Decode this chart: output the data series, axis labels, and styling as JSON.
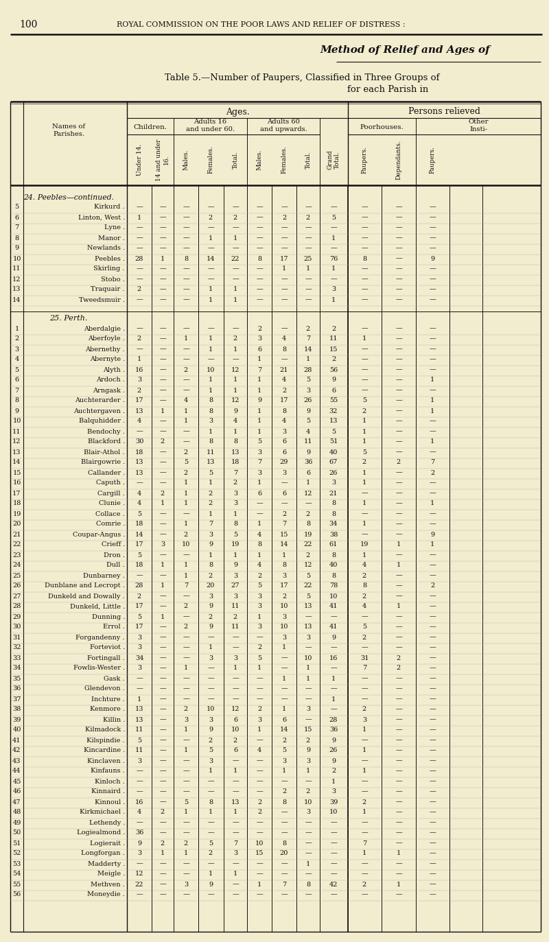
{
  "page_num": "100",
  "header_line": "ROYAL COMMISSION ON THE POOR LAWS AND RELIEF OF DISTRESS :",
  "right_header": "Method of Relief and Ages of",
  "table_title_line1": "Table 5.—Number of Paupers, Classified in Three Groups of",
  "table_title_line2": "for each Parish in",
  "section_peebles": "24. Peebles—continued.",
  "section_perth": "25. Perth.",
  "bg_color": "#f2edcf",
  "text_color": "#1a1a1a",
  "rows_peebles": [
    [
      "5",
      "Kirkurd",
      "—",
      "—",
      "—",
      "—",
      "—",
      "—",
      "—",
      "—",
      "—",
      "—",
      "—",
      "—"
    ],
    [
      "6",
      "Linton, West",
      "1",
      "—",
      "—",
      "2",
      "2",
      "—",
      "2",
      "2",
      "5",
      "—",
      "—",
      "—"
    ],
    [
      "7",
      "Lyne",
      "—",
      "—",
      "—",
      "—",
      "—",
      "—",
      "—",
      "—",
      "—",
      "—",
      "—",
      "—"
    ],
    [
      "8",
      "Manor",
      "—",
      "—",
      "—",
      "1",
      "1",
      "—",
      "—",
      "—",
      "1",
      "—",
      "—",
      "—"
    ],
    [
      "9",
      "Newlands",
      "—",
      "—",
      "—",
      "—",
      "—",
      "—",
      "—",
      "—",
      "—",
      "—",
      "—",
      "—"
    ],
    [
      "10",
      "Peebles",
      "28",
      "1",
      "8",
      "14",
      "22",
      "8",
      "17",
      "25",
      "76",
      "8",
      "—",
      "9"
    ],
    [
      "11",
      "Skirling",
      "—",
      "—",
      "—",
      "—",
      "—",
      "—",
      "1",
      "1",
      "1",
      "—",
      "—",
      "—"
    ],
    [
      "12",
      "Stobo",
      "—",
      "—",
      "—",
      "—",
      "—",
      "—",
      "—",
      "—",
      "—",
      "—",
      "—",
      "—"
    ],
    [
      "13",
      "Traquair",
      "2",
      "—",
      "—",
      "1",
      "1",
      "—",
      "—",
      "—",
      "3",
      "—",
      "—",
      "—"
    ],
    [
      "14",
      "Tweedsmuir",
      "—",
      "—",
      "—",
      "1",
      "1",
      "—",
      "—",
      "—",
      "1",
      "—",
      "—",
      "—"
    ]
  ],
  "rows_perth": [
    [
      "1",
      "Aberdalgie",
      "—",
      "—",
      "—",
      "—",
      "—",
      "2",
      "—",
      "2",
      "2",
      "—",
      "—",
      "—"
    ],
    [
      "2",
      "Aberfoyle",
      "2",
      "—",
      "1",
      "1",
      "2",
      "3",
      "4",
      "7",
      "11",
      "1",
      "—",
      "—"
    ],
    [
      "3",
      "Abernethy",
      "—",
      "—",
      "—",
      "1",
      "1",
      "6",
      "8",
      "14",
      "15",
      "—",
      "—",
      "—"
    ],
    [
      "4",
      "Abernyte",
      "1",
      "—",
      "—",
      "—",
      "—",
      "1",
      "—",
      "1",
      "2",
      "—",
      "—",
      "—"
    ],
    [
      "5",
      "Alyth",
      "16",
      "—",
      "2",
      "10",
      "12",
      "7",
      "21",
      "28",
      "56",
      "—",
      "—",
      "—"
    ],
    [
      "6",
      "Ardoch",
      "3",
      "—",
      "—",
      "1",
      "1",
      "1",
      "4",
      "5",
      "9",
      "—",
      "—",
      "1"
    ],
    [
      "7",
      "Arngask",
      "2",
      "—",
      "—",
      "1",
      "1",
      "1",
      "2",
      "3",
      "6",
      "—",
      "—",
      "—"
    ],
    [
      "8",
      "Auchterarder",
      "17",
      "—",
      "4",
      "8",
      "12",
      "9",
      "17",
      "26",
      "55",
      "5",
      "—",
      "1"
    ],
    [
      "9",
      "Auchtergaven",
      "13",
      "1",
      "1",
      "8",
      "9",
      "1",
      "8",
      "9",
      "32",
      "2",
      "—",
      "1"
    ],
    [
      "10",
      "Balquhidder",
      "4",
      "—",
      "1",
      "3",
      "4",
      "1",
      "4",
      "5",
      "13",
      "1",
      "—",
      "—"
    ],
    [
      "11",
      "Bendochy",
      "—",
      "—",
      "—",
      "1",
      "1",
      "1",
      "3",
      "4",
      "5",
      "1",
      "—",
      "—"
    ],
    [
      "12",
      "Blackford",
      "30",
      "2",
      "—",
      "8",
      "8",
      "5",
      "6",
      "11",
      "51",
      "1",
      "—",
      "1"
    ],
    [
      "13",
      "Blair-Athol",
      "18",
      "—",
      "2",
      "11",
      "13",
      "3",
      "6",
      "9",
      "40",
      "5",
      "—",
      "—"
    ],
    [
      "14",
      "Blairgowrie",
      "13",
      "—",
      "5",
      "13",
      "18",
      "7",
      "29",
      "36",
      "67",
      "2",
      "2",
      "7"
    ],
    [
      "15",
      "Callander",
      "13",
      "—",
      "2",
      "5",
      "7",
      "3",
      "3",
      "6",
      "26",
      "1",
      "—",
      "2"
    ],
    [
      "16",
      "Caputh",
      "—",
      "—",
      "1",
      "1",
      "2",
      "1",
      "—",
      "1",
      "3",
      "1",
      "—",
      "—"
    ],
    [
      "17",
      "Cargill",
      "4",
      "2",
      "1",
      "2",
      "3",
      "6",
      "6",
      "12",
      "21",
      "—",
      "—",
      "—"
    ],
    [
      "18",
      "Clunie",
      "4",
      "1",
      "1",
      "2",
      "3",
      "—",
      "—",
      "—",
      "8",
      "1",
      "—",
      "1"
    ],
    [
      "19",
      "Collace",
      "5",
      "—",
      "—",
      "1",
      "1",
      "—",
      "2",
      "2",
      "8",
      "—",
      "—",
      "—"
    ],
    [
      "20",
      "Comrie",
      "18",
      "—",
      "1",
      "7",
      "8",
      "1",
      "7",
      "8",
      "34",
      "1",
      "—",
      "—"
    ],
    [
      "21",
      "Coupar-Angus",
      "14",
      "—",
      "2",
      "3",
      "5",
      "4",
      "15",
      "19",
      "38",
      "—",
      "—",
      "9"
    ],
    [
      "22",
      "Crieff",
      "17",
      "3",
      "10",
      "9",
      "19",
      "8",
      "14",
      "22",
      "61",
      "19",
      "1",
      "1"
    ],
    [
      "23",
      "Dron",
      "5",
      "—",
      "—",
      "1",
      "1",
      "1",
      "1",
      "2",
      "8",
      "1",
      "—",
      "—"
    ],
    [
      "24",
      "Dull",
      "18",
      "1",
      "1",
      "8",
      "9",
      "4",
      "8",
      "12",
      "40",
      "4",
      "1",
      "—"
    ],
    [
      "25",
      "Dunbarney",
      "—",
      "—",
      "1",
      "2",
      "3",
      "2",
      "3",
      "5",
      "8",
      "2",
      "—",
      "—"
    ],
    [
      "26",
      "Dunblane and Lecropt",
      "28",
      "1",
      "7",
      "20",
      "27",
      "5",
      "17",
      "22",
      "78",
      "8",
      "—",
      "2"
    ],
    [
      "27",
      "Dunkeld and Dowally",
      "2",
      "—",
      "—",
      "3",
      "3",
      "3",
      "2",
      "5",
      "10",
      "2",
      "—",
      "—"
    ],
    [
      "28",
      "Dunkeld, Little",
      "17",
      "—",
      "2",
      "9",
      "11",
      "3",
      "10",
      "13",
      "41",
      "4",
      "1",
      "—"
    ],
    [
      "29",
      "Dunning",
      "5",
      "1",
      "—",
      "2",
      "2",
      "1",
      "3",
      "—",
      "—",
      "—",
      "—",
      "—"
    ],
    [
      "30",
      "Errol",
      "17",
      "—",
      "2",
      "9",
      "11",
      "3",
      "10",
      "13",
      "41",
      "5",
      "—",
      "—"
    ],
    [
      "31",
      "Forgandenny",
      "3",
      "—",
      "—",
      "—",
      "—",
      "—",
      "3",
      "3",
      "9",
      "2",
      "—",
      "—"
    ],
    [
      "32",
      "Forteviot",
      "3",
      "—",
      "—",
      "1",
      "—",
      "2",
      "1",
      "—",
      "—",
      "—",
      "—",
      "—"
    ],
    [
      "33",
      "Fortingall",
      "34",
      "—",
      "—",
      "3",
      "3",
      "5",
      "—",
      "10",
      "16",
      "31",
      "2",
      "—"
    ],
    [
      "34",
      "Fowlis-Wester",
      "3",
      "—",
      "1",
      "—",
      "1",
      "1",
      "—",
      "1",
      "—",
      "7",
      "2",
      "—"
    ],
    [
      "35",
      "Gask",
      "—",
      "—",
      "—",
      "—",
      "—",
      "—",
      "1",
      "1",
      "1",
      "—",
      "—",
      "—"
    ],
    [
      "36",
      "Glendevon",
      "—",
      "—",
      "—",
      "—",
      "—",
      "—",
      "—",
      "—",
      "—",
      "—",
      "—",
      "—"
    ],
    [
      "37",
      "Inchture",
      "1",
      "—",
      "—",
      "—",
      "—",
      "—",
      "—",
      "—",
      "1",
      "—",
      "—",
      "—"
    ],
    [
      "38",
      "Kenmore",
      "13",
      "—",
      "2",
      "10",
      "12",
      "2",
      "1",
      "3",
      "—",
      "2",
      "—",
      "—"
    ],
    [
      "39",
      "Killin",
      "13",
      "—",
      "3",
      "3",
      "6",
      "3",
      "6",
      "—",
      "28",
      "3",
      "—",
      "—"
    ],
    [
      "40",
      "Kilmadock",
      "11",
      "—",
      "1",
      "9",
      "10",
      "1",
      "14",
      "15",
      "36",
      "1",
      "—",
      "—"
    ],
    [
      "41",
      "Kilspindie",
      "5",
      "—",
      "—",
      "2",
      "2",
      "—",
      "2",
      "2",
      "9",
      "—",
      "—",
      "—"
    ],
    [
      "42",
      "Kincardine",
      "11",
      "—",
      "1",
      "5",
      "6",
      "4",
      "5",
      "9",
      "26",
      "1",
      "—",
      "—"
    ],
    [
      "43",
      "Kinclaven",
      "3",
      "—",
      "—",
      "3",
      "—",
      "—",
      "3",
      "3",
      "9",
      "—",
      "—",
      "—"
    ],
    [
      "44",
      "Kinfauns",
      "—",
      "—",
      "—",
      "1",
      "1",
      "—",
      "1",
      "1",
      "2",
      "1",
      "—",
      "—"
    ],
    [
      "45",
      "Kinloch",
      "—",
      "—",
      "—",
      "—",
      "—",
      "—",
      "—",
      "—",
      "1",
      "—",
      "—",
      "—"
    ],
    [
      "46",
      "Kinnaird",
      "—",
      "—",
      "—",
      "—",
      "—",
      "—",
      "2",
      "2",
      "3",
      "—",
      "—",
      "—"
    ],
    [
      "47",
      "Kinnoul",
      "16",
      "—",
      "5",
      "8",
      "13",
      "2",
      "8",
      "10",
      "39",
      "2",
      "—",
      "—"
    ],
    [
      "48",
      "Kirkmichael",
      "4",
      "2",
      "1",
      "1",
      "1",
      "2",
      "—",
      "3",
      "10",
      "1",
      "—",
      "—"
    ],
    [
      "49",
      "Lethendy",
      "—",
      "—",
      "—",
      "—",
      "—",
      "—",
      "—",
      "—",
      "—",
      "—",
      "—",
      "—"
    ],
    [
      "50",
      "Logiealmond",
      "36",
      "—",
      "—",
      "—",
      "—",
      "—",
      "—",
      "—",
      "—",
      "—",
      "—",
      "—"
    ],
    [
      "51",
      "Logierait",
      "9",
      "2",
      "2",
      "5",
      "7",
      "10",
      "8",
      "—",
      "—",
      "7",
      "—",
      "—"
    ],
    [
      "52",
      "Longforgan",
      "3",
      "1",
      "1",
      "2",
      "3",
      "15",
      "20",
      "—",
      "—",
      "1",
      "1",
      "—"
    ],
    [
      "53",
      "Madderty",
      "—",
      "—",
      "—",
      "—",
      "—",
      "—",
      "—",
      "1",
      "—",
      "—",
      "—",
      "—"
    ],
    [
      "54",
      "Meigle",
      "12",
      "—",
      "—",
      "1",
      "1",
      "—",
      "—",
      "—",
      "—",
      "—",
      "—",
      "—"
    ],
    [
      "55",
      "Methven",
      "22",
      "—",
      "3",
      "9",
      "—",
      "1",
      "7",
      "8",
      "42",
      "2",
      "1",
      "—"
    ],
    [
      "56",
      "Moneydie",
      "—",
      "—",
      "—",
      "—",
      "—",
      "—",
      "—",
      "—",
      "—",
      "—",
      "—",
      "—"
    ]
  ]
}
